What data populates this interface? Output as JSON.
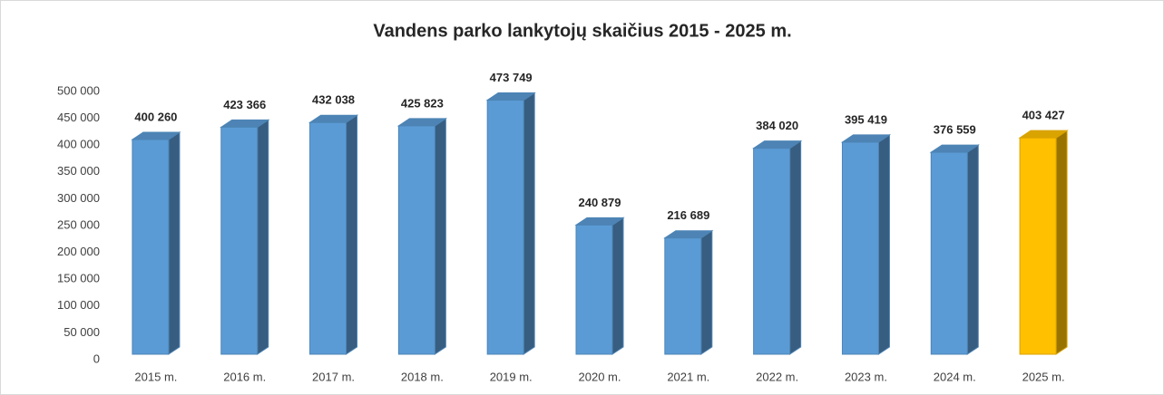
{
  "chart_data": {
    "type": "bar3d",
    "title": "Vandens parko lankytojų skaičius 2015 - 2025 m.",
    "categories": [
      "2015 m.",
      "2016 m.",
      "2017 m.",
      "2018 m.",
      "2019 m.",
      "2020 m.",
      "2021 m.",
      "2022 m.",
      "2023 m.",
      "2024 m.",
      "2025 m."
    ],
    "values": [
      400260,
      423366,
      432038,
      425823,
      473749,
      240879,
      216689,
      384020,
      395419,
      376559,
      403427
    ],
    "value_labels": [
      "400 260",
      "423 366",
      "432 038",
      "425 823",
      "473 749",
      "240 879",
      "216 689",
      "384 020",
      "395 419",
      "376 559",
      "403 427"
    ],
    "colors": [
      "#5b9bd5",
      "#5b9bd5",
      "#5b9bd5",
      "#5b9bd5",
      "#5b9bd5",
      "#5b9bd5",
      "#5b9bd5",
      "#5b9bd5",
      "#5b9bd5",
      "#5b9bd5",
      "#ffc000"
    ],
    "ylim": [
      0,
      500000
    ],
    "yticks": [
      0,
      {
        "value": 50000,
        "label": "50 000"
      },
      {
        "value": 100000,
        "label": "100 000"
      },
      {
        "value": 150000,
        "label": "150 000"
      },
      {
        "value": 200000,
        "label": "200 000"
      },
      {
        "value": 250000,
        "label": "250 000"
      },
      {
        "value": 300000,
        "label": "300 000"
      },
      {
        "value": 350000,
        "label": "350 000"
      },
      {
        "value": 400000,
        "label": "400 000"
      },
      {
        "value": 450000,
        "label": "450 000"
      },
      {
        "value": 500000,
        "label": "500 000"
      }
    ],
    "grid": false
  }
}
